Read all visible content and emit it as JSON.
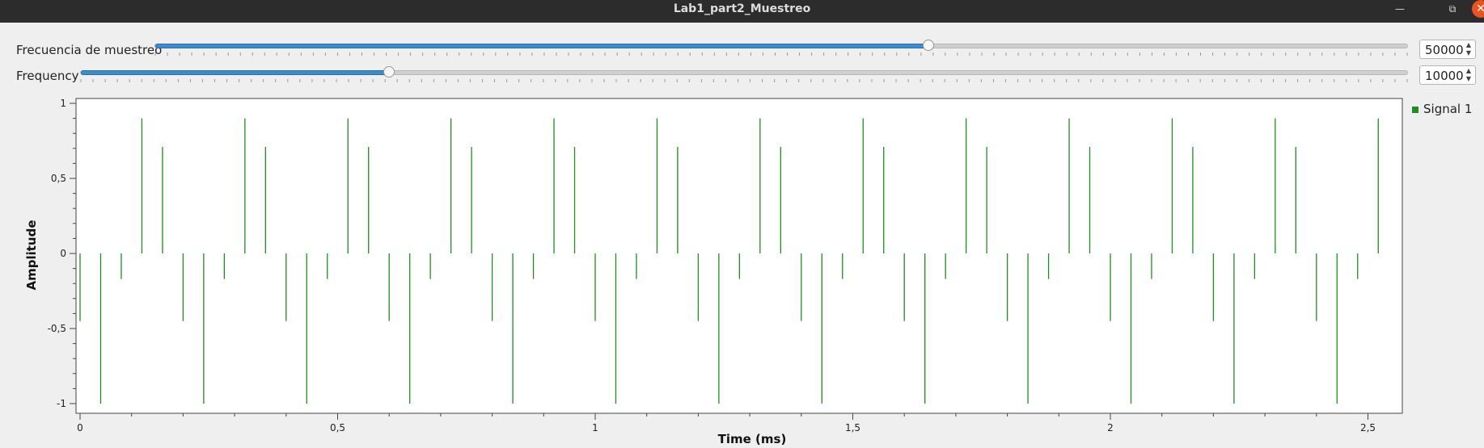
{
  "window": {
    "title": "Lab1_part2_Muestreo",
    "minimize_icon": "minimize-icon",
    "maximize_icon": "maximize-icon",
    "close_icon": "close-icon"
  },
  "controls": {
    "sample_rate": {
      "label": "Frecuencia de muestreo",
      "value": "50000",
      "fraction": 0.617
    },
    "frequency": {
      "label": "Frequency",
      "value": "10000",
      "fraction": 0.232
    }
  },
  "legend": {
    "label": "Signal 1",
    "color": "#228b22"
  },
  "chart_data": {
    "type": "stem",
    "xlabel": "Time (ms)",
    "ylabel": "Amplitude",
    "xlim": [
      0,
      2.56
    ],
    "ylim": [
      -1,
      1
    ],
    "x_ticks": [
      {
        "v": 0,
        "label": "0"
      },
      {
        "v": 0.5,
        "label": "0,5"
      },
      {
        "v": 1,
        "label": "1"
      },
      {
        "v": 1.5,
        "label": "1,5"
      },
      {
        "v": 2,
        "label": "2"
      },
      {
        "v": 2.5,
        "label": "2,5"
      }
    ],
    "y_ticks": [
      {
        "v": 1,
        "label": "1"
      },
      {
        "v": 0.5,
        "label": "0,5"
      },
      {
        "v": 0,
        "label": "0"
      },
      {
        "v": -0.5,
        "label": "-0,5"
      },
      {
        "v": -1,
        "label": "-1"
      }
    ],
    "grid": false,
    "legend_position": "right",
    "series": [
      {
        "name": "Signal 1",
        "color": "#228b22",
        "sample_period_ms": 0.02,
        "period_values": [
          -0.45,
          0,
          -1,
          0,
          -0.17,
          0,
          0.9,
          0,
          0.71,
          0
        ]
      }
    ]
  }
}
